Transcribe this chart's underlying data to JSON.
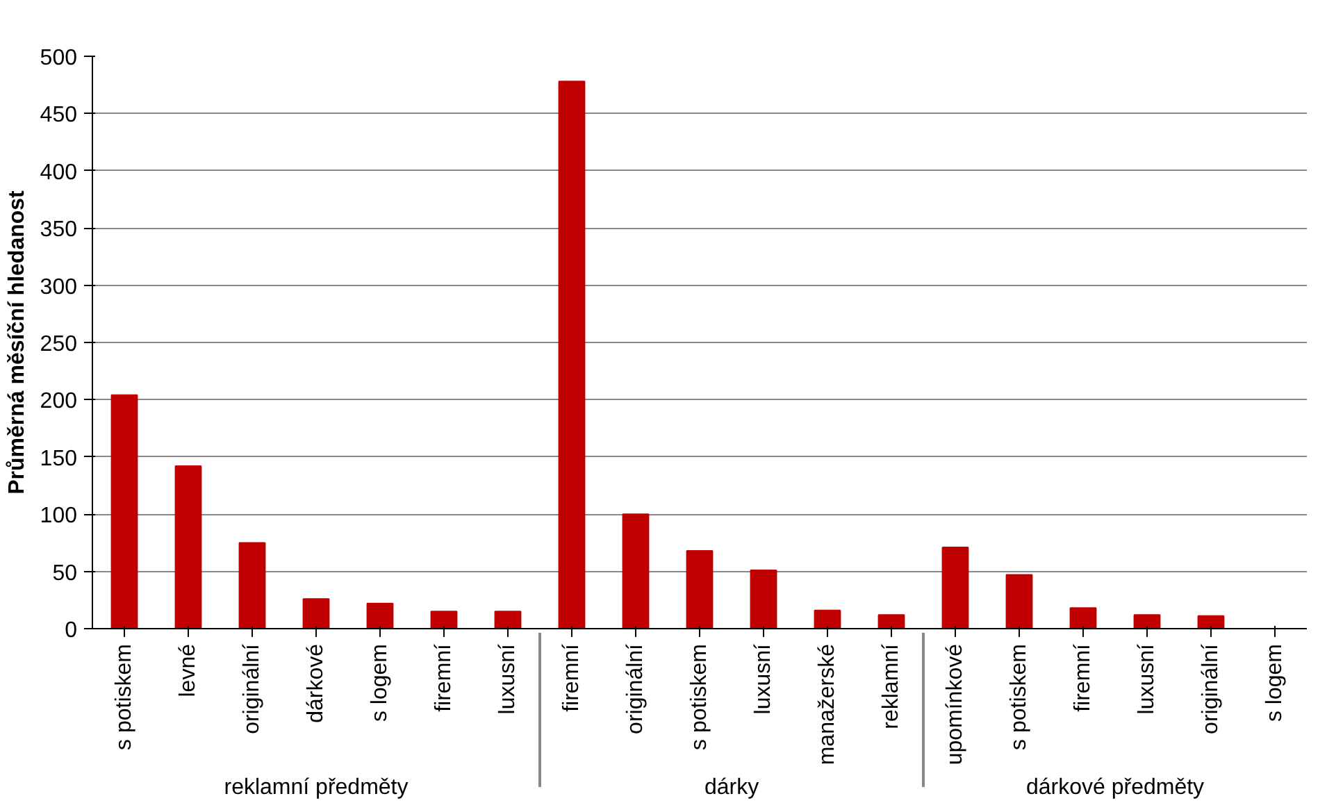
{
  "chart_data": {
    "type": "bar",
    "ylabel": "Průměrná měsíční hledanost",
    "categories": [
      [
        "reklamní předměty",
        "s potiskem"
      ],
      [
        null,
        "levné"
      ],
      [
        null,
        "originální"
      ],
      [
        null,
        "dárkové"
      ],
      [
        null,
        "s logem"
      ],
      [
        null,
        "firemní"
      ],
      [
        null,
        "luxusní"
      ],
      [
        "dárky",
        "firemní"
      ],
      [
        null,
        "originální"
      ],
      [
        null,
        "s potiskem"
      ],
      [
        null,
        "luxusní"
      ],
      [
        null,
        "manažerské"
      ],
      [
        null,
        "reklamní"
      ],
      [
        "dárkové předměty",
        "upomínkové"
      ],
      [
        null,
        "s potiskem"
      ],
      [
        null,
        "firemní"
      ],
      [
        null,
        "luxusní"
      ],
      [
        null,
        "originální"
      ],
      [
        null,
        "s logem"
      ]
    ],
    "values": [
      204,
      142,
      75,
      26,
      22,
      15,
      15,
      478,
      100,
      68,
      51,
      16,
      12,
      71,
      47,
      18,
      12,
      11,
      0
    ],
    "color": "#c00000",
    "ylim": [
      0,
      500
    ],
    "yticks": [
      0,
      50,
      100,
      150,
      200,
      250,
      300,
      350,
      400,
      450,
      500
    ],
    "grid": "y"
  }
}
